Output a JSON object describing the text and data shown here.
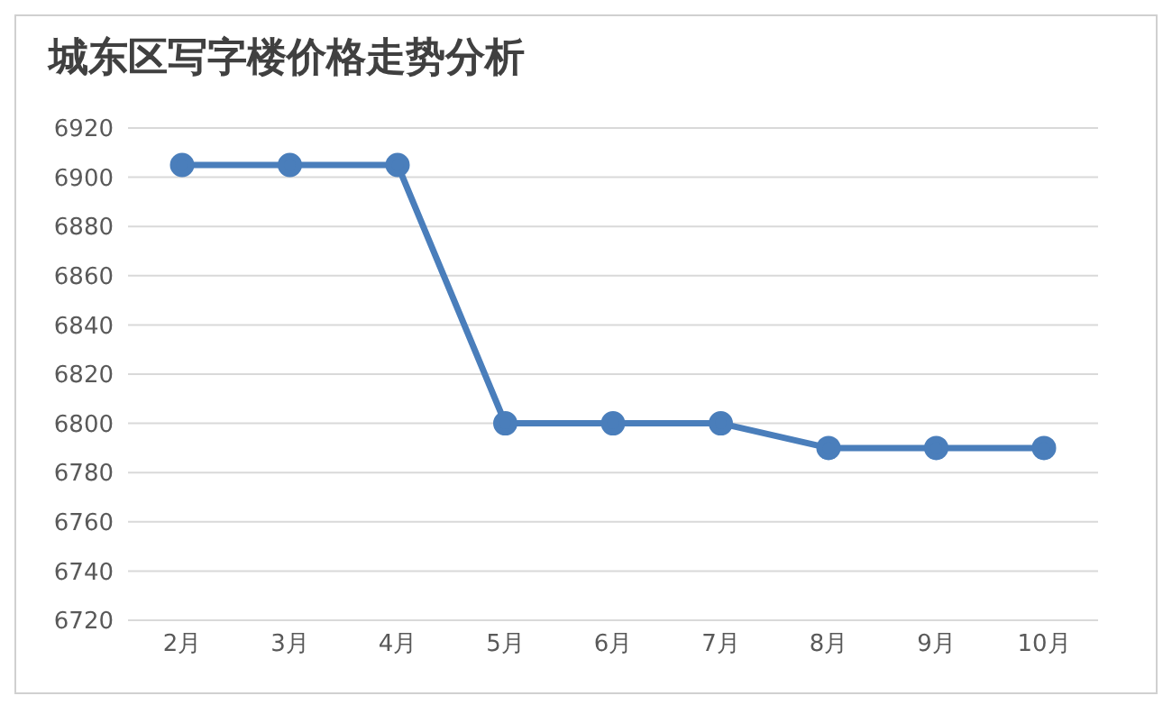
{
  "chart_data": {
    "type": "line",
    "title": "城东区写字楼价格走势分析",
    "categories": [
      "2月",
      "3月",
      "4月",
      "5月",
      "6月",
      "7月",
      "8月",
      "9月",
      "10月"
    ],
    "series": [
      {
        "color": "#4a7ebb",
        "values": [
          6905,
          6905,
          6905,
          6800,
          6800,
          6800,
          6790,
          6790,
          6790
        ]
      }
    ],
    "ylim": [
      6720,
      6920
    ],
    "yticks": [
      6720,
      6740,
      6760,
      6780,
      6800,
      6820,
      6840,
      6860,
      6880,
      6900,
      6920
    ],
    "grid": "y",
    "marker": "circle",
    "line_style": "solid"
  }
}
